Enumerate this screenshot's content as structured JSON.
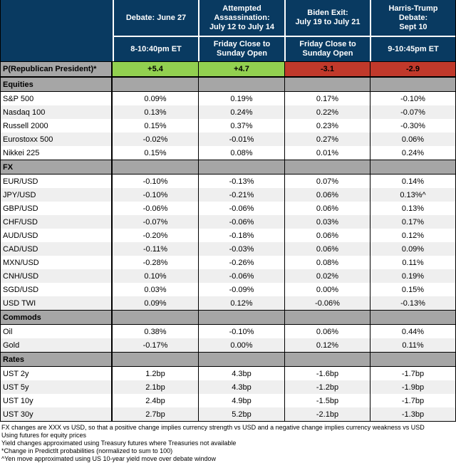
{
  "colors": {
    "navy_header": "#093A61",
    "green": "#92D050",
    "red": "#C0392B",
    "section_gray": "#A6A6A6",
    "alt_row_gray": "#EFEFEF",
    "border_black": "#000000",
    "header_text": "#FFFFFF"
  },
  "chart_data": {
    "type": "table",
    "column_headers": [
      {
        "event": "Debate: June 27",
        "window": "8-10:40pm ET"
      },
      {
        "event": "Attempted\nAssassination:\nJuly 12 to July 14",
        "window": "Friday Close to\nSunday Open"
      },
      {
        "event": "Biden Exit:\nJuly 19 to July 21",
        "window": "Friday Close to\nSunday Open"
      },
      {
        "event": "Harris-Trump\nDebate:\nSept 10",
        "window": "9-10:45pm ET"
      }
    ],
    "probability_row": {
      "label": "P(Republican President)*",
      "values": [
        "+5.4",
        "+4.7",
        "-3.1",
        "-2.9"
      ],
      "cell_colors": [
        "green",
        "green",
        "red",
        "red"
      ]
    },
    "sections": [
      {
        "name": "Equities",
        "rows": [
          [
            "S&P 500",
            "0.09%",
            "0.19%",
            "0.17%",
            "-0.10%"
          ],
          [
            "Nasdaq 100",
            "0.13%",
            "0.24%",
            "0.22%",
            "-0.07%"
          ],
          [
            "Russell 2000",
            "0.15%",
            "0.37%",
            "0.23%",
            "-0.30%"
          ],
          [
            "Eurostoxx 500",
            "-0.02%",
            "-0.01%",
            "0.27%",
            "0.06%"
          ],
          [
            "Nikkei 225",
            "0.15%",
            "0.08%",
            "0.01%",
            "0.24%"
          ]
        ]
      },
      {
        "name": "FX",
        "rows": [
          [
            "EUR/USD",
            "-0.10%",
            "-0.13%",
            "0.07%",
            "0.14%"
          ],
          [
            "JPY/USD",
            "-0.10%",
            "-0.21%",
            "0.06%",
            "0.13%^"
          ],
          [
            "GBP/USD",
            "-0.06%",
            "-0.06%",
            "0.06%",
            "0.13%"
          ],
          [
            "CHF/USD",
            "-0.07%",
            "-0.06%",
            "0.03%",
            "0.17%"
          ],
          [
            "AUD/USD",
            "-0.20%",
            "-0.18%",
            "0.06%",
            "0.12%"
          ],
          [
            "CAD/USD",
            "-0.11%",
            "-0.03%",
            "0.06%",
            "0.09%"
          ],
          [
            "MXN/USD",
            "-0.28%",
            "-0.26%",
            "0.08%",
            "0.11%"
          ],
          [
            "CNH/USD",
            "0.10%",
            "-0.06%",
            "0.02%",
            "0.19%"
          ],
          [
            "SGD/USD",
            "0.03%",
            "-0.09%",
            "0.00%",
            "0.15%"
          ],
          [
            "USD TWI",
            "0.09%",
            "0.12%",
            "-0.06%",
            "-0.13%"
          ]
        ]
      },
      {
        "name": "Commods",
        "rows": [
          [
            "Oil",
            "0.38%",
            "-0.10%",
            "0.06%",
            "0.44%"
          ],
          [
            "Gold",
            "-0.17%",
            "0.00%",
            "0.12%",
            "0.11%"
          ]
        ]
      },
      {
        "name": "Rates",
        "rows": [
          [
            "UST 2y",
            "1.2bp",
            "4.3bp",
            "-1.6bp",
            "-1.7bp"
          ],
          [
            "UST 5y",
            "2.1bp",
            "4.3bp",
            "-1.2bp",
            "-1.9bp"
          ],
          [
            "UST 10y",
            "2.4bp",
            "4.9bp",
            "-1.5bp",
            "-1.7bp"
          ],
          [
            "UST 30y",
            "2.7bp",
            "5.2bp",
            "-2.1bp",
            "-1.3bp"
          ]
        ]
      }
    ],
    "footnotes": [
      "FX changes are XXX vs USD, so that a positive change implies currency strength vs USD and a negative change implies currency weakness vs USD",
      "Using futures for equity prices",
      "Yield changes approximated using Treasury futures where Treasuries not available",
      "*Change in PredictIt probabilities (normalized to sum to 100)",
      "^Yen move approximated using US 10-year yield move over debate window"
    ]
  }
}
